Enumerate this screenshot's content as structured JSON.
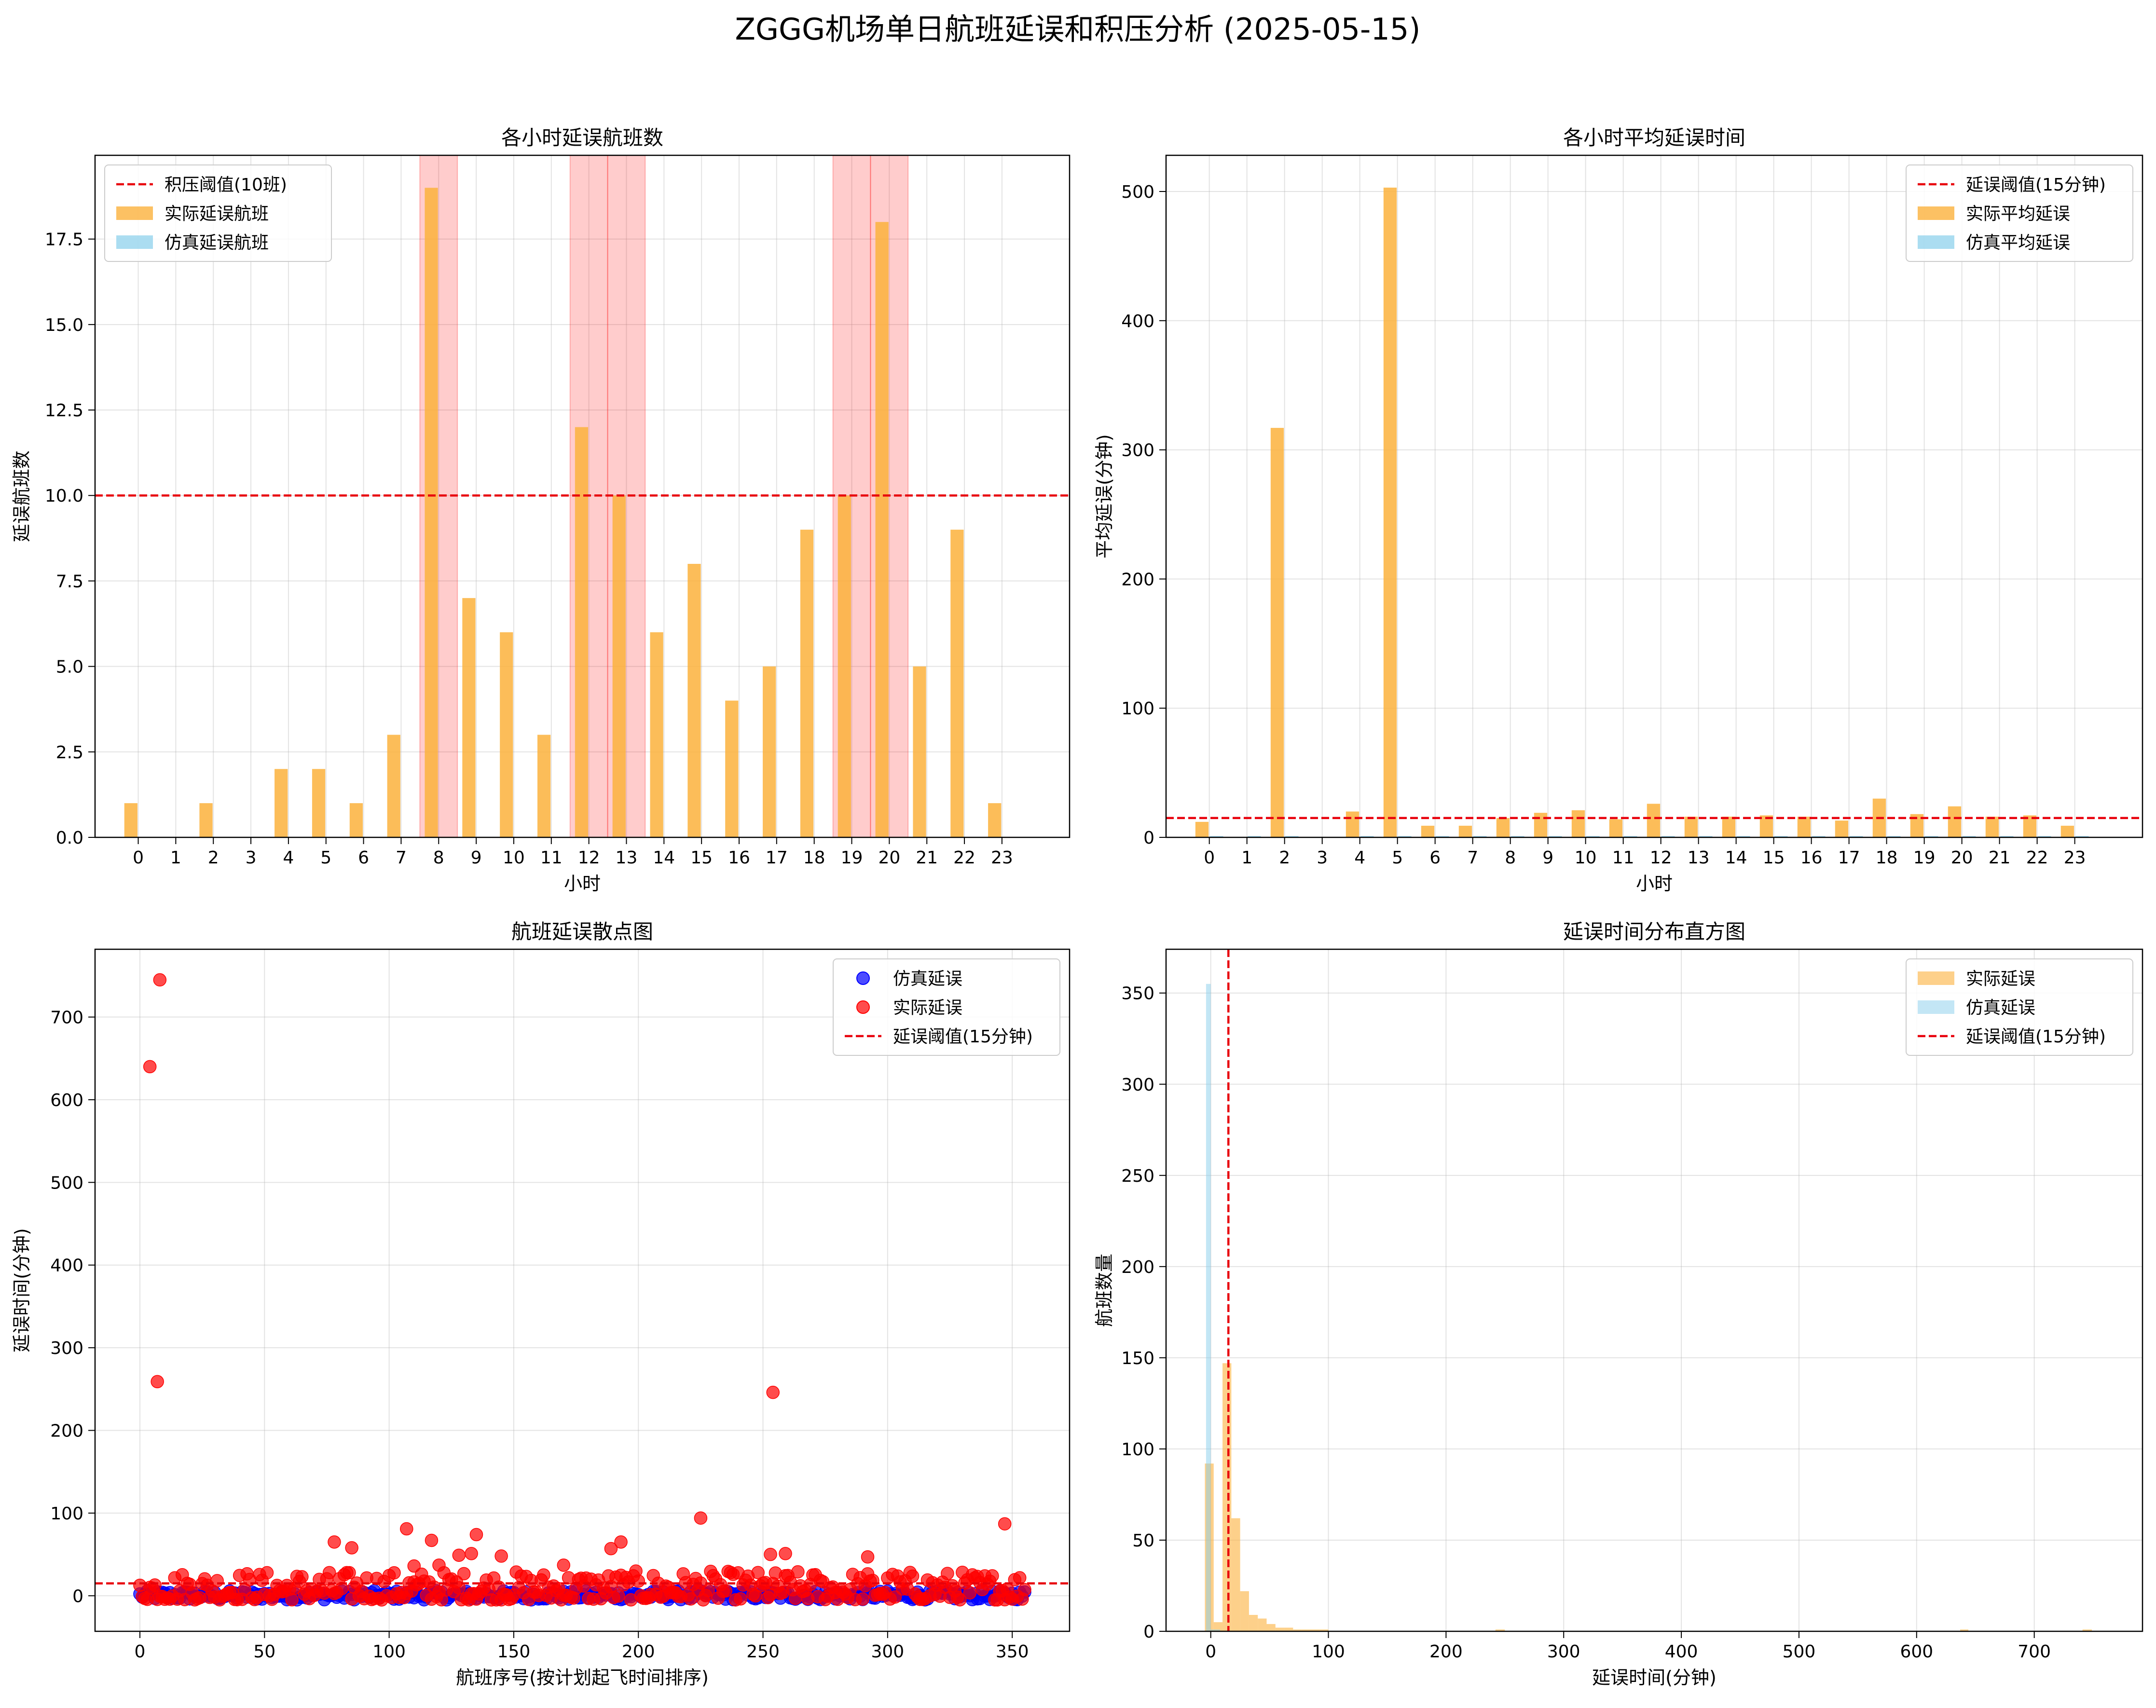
{
  "figure_title": "ZGGG机场单日航班延误和积压分析 (2025-05-15)",
  "chart_data": [
    {
      "type": "bar",
      "title": "各小时延误航班数",
      "xlabel": "小时",
      "ylabel": "延误航班数",
      "categories": [
        "0",
        "1",
        "2",
        "3",
        "4",
        "5",
        "6",
        "7",
        "8",
        "9",
        "10",
        "11",
        "12",
        "13",
        "14",
        "15",
        "16",
        "17",
        "18",
        "19",
        "20",
        "21",
        "22",
        "23"
      ],
      "series": [
        {
          "name": "实际延误航班",
          "color": "#FBB13C",
          "values": [
            1,
            0,
            1,
            0,
            2,
            2,
            1,
            3,
            19,
            7,
            6,
            3,
            12,
            10,
            6,
            8,
            4,
            5,
            9,
            10,
            18,
            5,
            9,
            1
          ]
        },
        {
          "name": "仿真延误航班",
          "color": "#87CEEB",
          "values": [
            0,
            0,
            0,
            0,
            0,
            0,
            0,
            0,
            0,
            0,
            0,
            0,
            0,
            0,
            0,
            0,
            0,
            0,
            0,
            0,
            0,
            0,
            0,
            0
          ]
        }
      ],
      "threshold": {
        "name": "积压阈值(10班)",
        "value": 10,
        "color": "#E8000B"
      },
      "highlight_hours": [
        8,
        12,
        13,
        19,
        20
      ],
      "ylim": [
        0,
        19.95
      ],
      "yticks": [
        "0.0",
        "2.5",
        "5.0",
        "7.5",
        "10.0",
        "12.5",
        "15.0",
        "17.5"
      ],
      "grid": true,
      "legend": "top-left"
    },
    {
      "type": "bar",
      "title": "各小时平均延误时间",
      "xlabel": "小时",
      "ylabel": "平均延误(分钟)",
      "categories": [
        "0",
        "1",
        "2",
        "3",
        "4",
        "5",
        "6",
        "7",
        "8",
        "9",
        "10",
        "11",
        "12",
        "13",
        "14",
        "15",
        "16",
        "17",
        "18",
        "19",
        "20",
        "21",
        "22",
        "23"
      ],
      "series": [
        {
          "name": "实际平均延误",
          "color": "#FBB13C",
          "values": [
            12,
            0,
            317,
            0,
            20,
            503,
            9,
            9,
            15,
            19,
            21,
            14,
            26,
            16,
            16,
            17,
            16,
            13,
            30,
            18,
            24,
            16,
            17,
            9
          ]
        },
        {
          "name": "仿真平均延误",
          "color": "#87CEEB",
          "values": [
            1,
            1,
            1,
            0,
            1,
            1,
            1,
            1,
            1,
            1,
            1,
            1,
            1,
            1,
            1,
            1,
            1,
            1,
            1,
            1,
            1,
            1,
            1,
            1
          ]
        }
      ],
      "threshold": {
        "name": "延误阈值(15分钟)",
        "value": 15,
        "color": "#E8000B"
      },
      "ylim": [
        0,
        528
      ],
      "yticks": [
        "0",
        "100",
        "200",
        "300",
        "400",
        "500"
      ],
      "grid": true,
      "legend": "top-right"
    },
    {
      "type": "scatter",
      "title": "航班延误散点图",
      "xlabel": "航班序号(按计划起飞时间排序)",
      "ylabel": "延误时间(分钟)",
      "xlim": [
        -18,
        373
      ],
      "ylim": [
        -43,
        782
      ],
      "xticks": [
        "0",
        "50",
        "100",
        "150",
        "200",
        "250",
        "300",
        "350"
      ],
      "yticks": [
        "0",
        "100",
        "200",
        "300",
        "400",
        "500",
        "600",
        "700"
      ],
      "series": [
        {
          "name": "仿真延误",
          "color": "#0000FF",
          "n": 356,
          "typical_range": [
            -5,
            6
          ]
        },
        {
          "name": "实际延误",
          "color": "#FF0000",
          "n": 356,
          "typical_range": [
            -5,
            30
          ],
          "outliers": [
            [
              4,
              640
            ],
            [
              8,
              745
            ],
            [
              7,
              259
            ],
            [
              254,
              246
            ],
            [
              225,
              94
            ],
            [
              347,
              87
            ],
            [
              107,
              81
            ],
            [
              135,
              74
            ],
            [
              78,
              65
            ],
            [
              117,
              67
            ],
            [
              193,
              65
            ],
            [
              85,
              58
            ],
            [
              189,
              57
            ],
            [
              253,
              50
            ],
            [
              259,
              51
            ],
            [
              128,
              49
            ],
            [
              133,
              51
            ],
            [
              145,
              48
            ],
            [
              292,
              47
            ],
            [
              110,
              36
            ],
            [
              120,
              37
            ],
            [
              170,
              37
            ]
          ]
        }
      ],
      "threshold": {
        "name": "延误阈值(15分钟)",
        "value": 15,
        "color": "#E8000B"
      },
      "grid": true,
      "legend": "top-right"
    },
    {
      "type": "histogram",
      "title": "延误时间分布直方图",
      "xlabel": "延误时间(分钟)",
      "ylabel": "航班数量",
      "xlim": [
        -38,
        792
      ],
      "ylim": [
        0,
        374
      ],
      "xticks": [
        "0",
        "100",
        "200",
        "300",
        "400",
        "500",
        "600",
        "700"
      ],
      "yticks": [
        "0",
        "50",
        "100",
        "150",
        "200",
        "250",
        "300",
        "350"
      ],
      "series": [
        {
          "name": "实际延误",
          "color": "#FBB13C",
          "bins": [
            [
              -5,
              2.5,
              92
            ],
            [
              2.5,
              10,
              5
            ],
            [
              10,
              17.5,
              147
            ],
            [
              17.5,
              25,
              62
            ],
            [
              25,
              32.5,
              22
            ],
            [
              32.5,
              40,
              9
            ],
            [
              40,
              47.5,
              7
            ],
            [
              47.5,
              55,
              4
            ],
            [
              55,
              62.5,
              2
            ],
            [
              62.5,
              70,
              2
            ],
            [
              70,
              77.5,
              1
            ],
            [
              77.5,
              85,
              1
            ],
            [
              85,
              92.5,
              1
            ],
            [
              92.5,
              100,
              1
            ],
            [
              242,
              250,
              1
            ],
            [
              637,
              644,
              1
            ],
            [
              741,
              749,
              1
            ]
          ]
        },
        {
          "name": "仿真延误",
          "color": "#87CEEB",
          "bins": [
            [
              -4,
              0,
              355
            ],
            [
              0,
              8,
              1
            ]
          ]
        }
      ],
      "threshold": {
        "name": "延误阈值(15分钟)",
        "value": 15,
        "color": "#E8000B"
      },
      "grid": true,
      "legend": "top-right"
    }
  ]
}
